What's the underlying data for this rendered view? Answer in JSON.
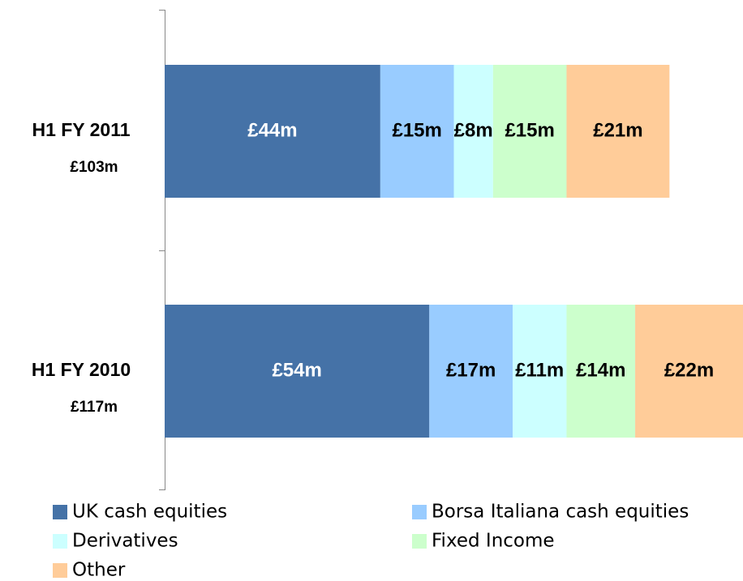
{
  "chart_data": {
    "type": "stacked_bar_horizontal",
    "categories": [
      "H1 FY 2011",
      "H1 FY 2010"
    ],
    "category_totals": [
      "£103m",
      "£117m"
    ],
    "series": [
      {
        "name": "UK cash equities",
        "color": "#4572a7",
        "label_color": "#ffffff",
        "values": [
          44,
          54
        ],
        "value_labels": [
          "£44m",
          "£54m"
        ]
      },
      {
        "name": "Borsa Italiana cash equities",
        "color": "#99ccff",
        "label_color": "#000000",
        "values": [
          15,
          17
        ],
        "value_labels": [
          "£15m",
          "£17m"
        ]
      },
      {
        "name": "Derivatives",
        "color": "#ccffff",
        "label_color": "#000000",
        "values": [
          8,
          11
        ],
        "value_labels": [
          "£8m",
          "£11m"
        ]
      },
      {
        "name": "Fixed Income",
        "color": "#ccffcc",
        "label_color": "#000000",
        "values": [
          15,
          14
        ],
        "value_labels": [
          "£15m",
          "£14m"
        ]
      },
      {
        "name": "Other",
        "color": "#ffcc99",
        "label_color": "#000000",
        "values": [
          21,
          22
        ],
        "value_labels": [
          "£21m",
          "£22m"
        ]
      }
    ],
    "legend": "bottom"
  }
}
